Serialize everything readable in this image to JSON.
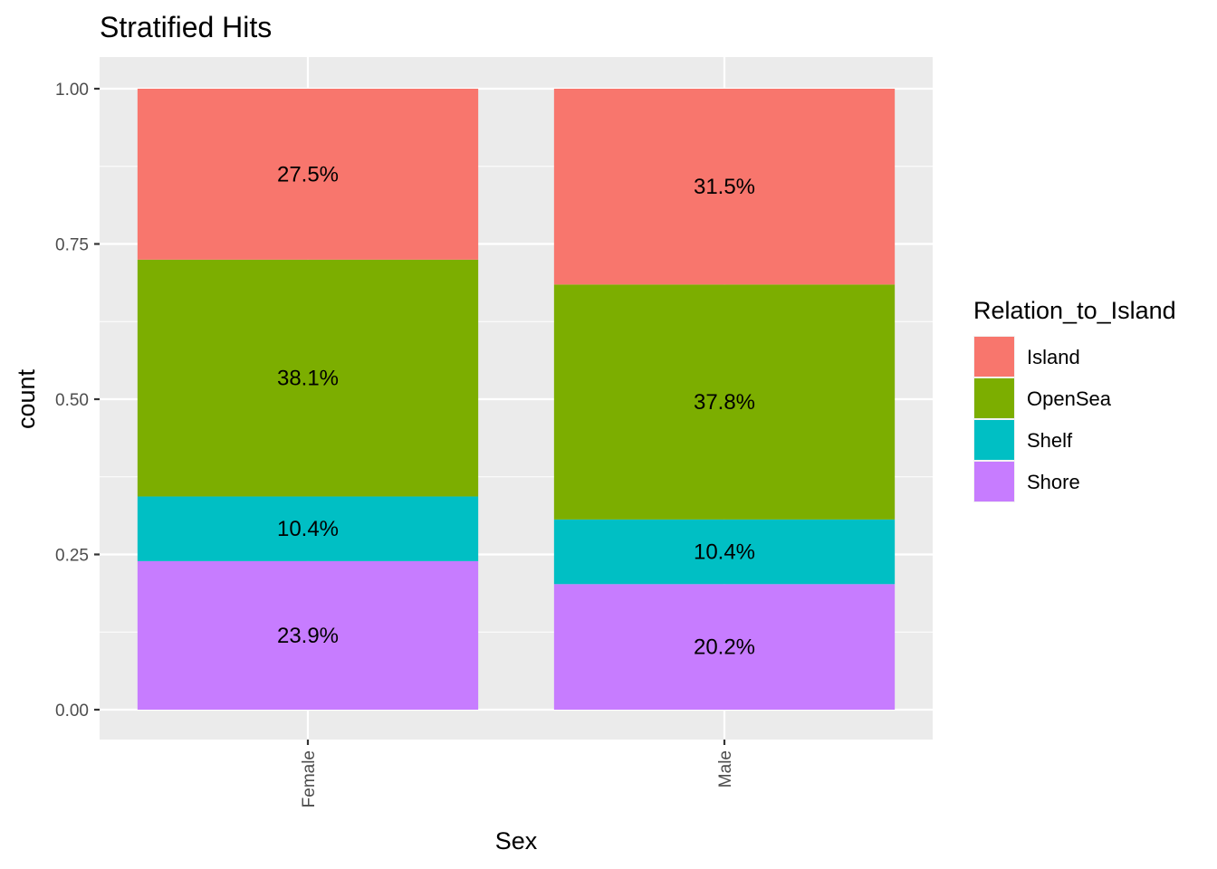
{
  "chart_data": {
    "type": "bar",
    "stacked": true,
    "title": "Stratified Hits",
    "xlabel": "Sex",
    "ylabel": "count",
    "categories": [
      "Female",
      "Male"
    ],
    "ylim": [
      0,
      1
    ],
    "yticks": [
      0,
      0.25,
      0.5,
      0.75,
      1
    ],
    "ytick_labels": [
      "0.00",
      "0.25",
      "0.50",
      "0.75",
      "1.00"
    ],
    "legend_title": "Relation_to_Island",
    "legend_position": "right",
    "grid": true,
    "series": [
      {
        "name": "Island",
        "color": "#F8766D",
        "values": [
          0.275,
          0.315
        ],
        "labels": [
          "27.5%",
          "31.5%"
        ]
      },
      {
        "name": "OpenSea",
        "color": "#7CAE00",
        "values": [
          0.381,
          0.378
        ],
        "labels": [
          "38.1%",
          "37.8%"
        ]
      },
      {
        "name": "Shelf",
        "color": "#00BFC4",
        "values": [
          0.104,
          0.104
        ],
        "labels": [
          "10.4%",
          "10.4%"
        ]
      },
      {
        "name": "Shore",
        "color": "#C77CFF",
        "values": [
          0.239,
          0.202
        ],
        "labels": [
          "23.9%",
          "20.2%"
        ]
      }
    ],
    "panel_background": "#EBEBEB",
    "grid_color": "#FFFFFF"
  }
}
